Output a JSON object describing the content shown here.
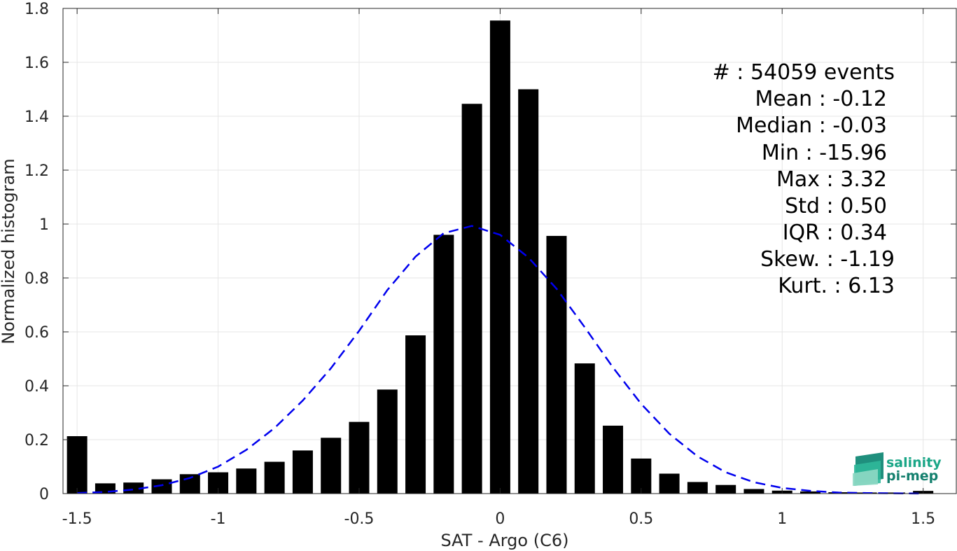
{
  "chart_data": {
    "type": "bar",
    "xlabel": "SAT - Argo (C6)",
    "ylabel": "Normalized histogram",
    "xlim": [
      -1.55,
      1.62
    ],
    "ylim": [
      0,
      1.8
    ],
    "grid": true,
    "x_ticks": [
      -1.5,
      -1,
      -0.5,
      0,
      0.5,
      1,
      1.5
    ],
    "x_tick_labels": [
      "-1.5",
      "-1",
      "-0.5",
      "0",
      "0.5",
      "1",
      "1.5"
    ],
    "y_ticks": [
      0,
      0.2,
      0.4,
      0.6,
      0.8,
      1,
      1.2,
      1.4,
      1.6,
      1.8
    ],
    "y_tick_labels": [
      "0",
      "0.2",
      "0.4",
      "0.6",
      "0.8",
      "1",
      "1.2",
      "1.4",
      "1.6",
      "1.8"
    ],
    "bar_color": "#000000",
    "bars": {
      "x": [
        -1.5,
        -1.4,
        -1.3,
        -1.2,
        -1.1,
        -1.0,
        -0.9,
        -0.8,
        -0.7,
        -0.6,
        -0.5,
        -0.4,
        -0.3,
        -0.2,
        -0.1,
        0.0,
        0.1,
        0.2,
        0.3,
        0.4,
        0.5,
        0.6,
        0.7,
        0.8,
        0.9,
        1.0,
        1.1,
        1.2,
        1.3,
        1.4,
        1.5
      ],
      "values": [
        0.213,
        0.038,
        0.041,
        0.053,
        0.072,
        0.079,
        0.093,
        0.118,
        0.16,
        0.207,
        0.266,
        0.386,
        0.587,
        0.96,
        1.446,
        1.755,
        1.5,
        0.956,
        0.483,
        0.252,
        0.13,
        0.074,
        0.043,
        0.032,
        0.017,
        0.011,
        0.008,
        0.005,
        0.004,
        0.004,
        0.01
      ]
    },
    "fit": {
      "style": "dashed",
      "color": "#0000ee",
      "x": [
        -1.5,
        -1.4,
        -1.3,
        -1.2,
        -1.1,
        -1.0,
        -0.9,
        -0.8,
        -0.7,
        -0.6,
        -0.5,
        -0.4,
        -0.3,
        -0.2,
        -0.1,
        0.0,
        0.1,
        0.2,
        0.3,
        0.4,
        0.5,
        0.6,
        0.7,
        0.8,
        0.9,
        1.0,
        1.1,
        1.2,
        1.3,
        1.4,
        1.5
      ],
      "y": [
        0.002,
        0.006,
        0.015,
        0.031,
        0.058,
        0.1,
        0.162,
        0.243,
        0.345,
        0.465,
        0.604,
        0.755,
        0.879,
        0.966,
        0.993,
        0.96,
        0.876,
        0.76,
        0.617,
        0.468,
        0.333,
        0.222,
        0.138,
        0.079,
        0.042,
        0.021,
        0.01,
        0.004,
        0.002,
        0.001,
        0.0
      ]
    },
    "annotations": [
      "#  : 54059 events",
      "Mean : -0.12",
      "Median : -0.03",
      "Min : -15.96",
      "Max : 3.32",
      "Std : 0.50",
      "IQR : 0.34",
      "Skew. : -1.19",
      "Kurt. : 6.13"
    ]
  },
  "logo": {
    "line1": "salinity",
    "line2": "pi-mep",
    "colors": {
      "text1": "#1aa687",
      "text2": "#14806e",
      "mark": "#2fb89a"
    }
  }
}
